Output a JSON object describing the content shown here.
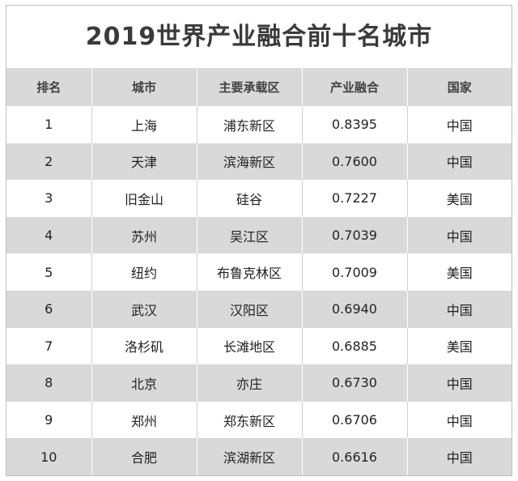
{
  "title": "2019世界产业融合前十名城市",
  "headers": [
    "排名",
    "城市",
    "主要承载区",
    "产业融合",
    "国家"
  ],
  "rows": [
    [
      "1",
      "上海",
      "浦东新区",
      "0.8395",
      "中国"
    ],
    [
      "2",
      "天津",
      "滨海新区",
      "0.7600",
      "中国"
    ],
    [
      "3",
      "旧金山",
      "硅谷",
      "0.7227",
      "美国"
    ],
    [
      "4",
      "苏州",
      "吴江区",
      "0.7039",
      "中国"
    ],
    [
      "5",
      "纽约",
      "布鲁克林区",
      "0.7009",
      "美国"
    ],
    [
      "6",
      "武汉",
      "汉阳区",
      "0.6940",
      "中国"
    ],
    [
      "7",
      "洛杉矶",
      "长滩地区",
      "0.6885",
      "美国"
    ],
    [
      "8",
      "北京",
      "亦庄",
      "0.6730",
      "中国"
    ],
    [
      "9",
      "郑州",
      "郑东新区",
      "0.6706",
      "中国"
    ],
    [
      "10",
      "合肥",
      "滨湖新区",
      "0.6616",
      "中国"
    ]
  ]
}
